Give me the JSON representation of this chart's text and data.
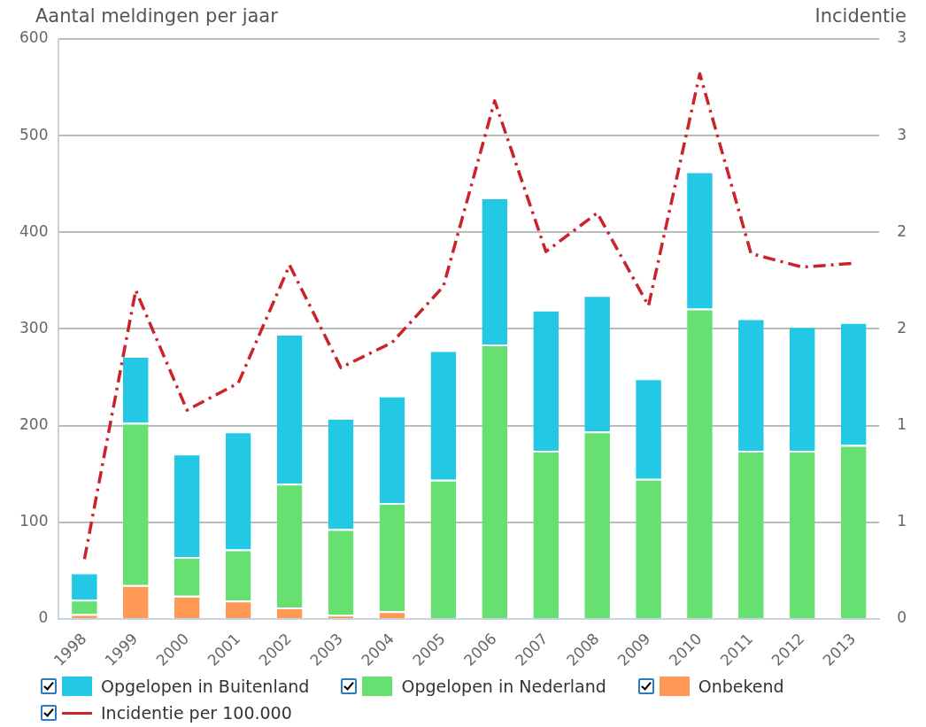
{
  "chart_data": {
    "type": "bar",
    "stacked": true,
    "ylabel": "Aantal meldingen per jaar",
    "y2label": "Incidentie",
    "categories": [
      "1998",
      "1999",
      "2000",
      "2001",
      "2002",
      "2003",
      "2004",
      "2005",
      "2006",
      "2007",
      "2008",
      "2009",
      "2010",
      "2011",
      "2012",
      "2013"
    ],
    "series": [
      {
        "name": "Onbekend",
        "color": "#ff9955",
        "values": [
          5,
          35,
          24,
          19,
          12,
          4,
          8,
          0,
          0,
          0,
          0,
          0,
          0,
          0,
          0,
          0
        ]
      },
      {
        "name": "Opgelopen in Nederland",
        "color": "#66e070",
        "values": [
          15,
          168,
          40,
          53,
          128,
          89,
          112,
          144,
          284,
          174,
          194,
          145,
          321,
          174,
          174,
          180
        ]
      },
      {
        "name": "Opgelopen in Buitenland",
        "color": "#22c8e4",
        "values": [
          28,
          69,
          107,
          122,
          155,
          115,
          111,
          134,
          152,
          146,
          141,
          104,
          142,
          137,
          129,
          127
        ]
      },
      {
        "name": "Incidentie per 100.000",
        "type": "line",
        "axis": "y2",
        "color": "#cc2229",
        "line_style": "dashed",
        "marker": "none",
        "values": [
          0.31,
          1.7,
          1.08,
          1.22,
          1.83,
          1.3,
          1.43,
          1.72,
          2.68,
          1.9,
          2.1,
          1.62,
          2.82,
          1.89,
          1.82,
          1.84
        ]
      }
    ],
    "ylim": [
      0,
      600
    ],
    "yticks": [
      0,
      100,
      200,
      300,
      400,
      500,
      600
    ],
    "y2lim": [
      0,
      3
    ],
    "y2ticks": [
      0,
      {
        "value": 0.5,
        "label": "1"
      },
      1,
      {
        "value": 1.5,
        "label": "2"
      },
      2,
      {
        "value": 2.5,
        "label": "3"
      },
      3
    ],
    "grid": "y",
    "legend": "bottom"
  }
}
